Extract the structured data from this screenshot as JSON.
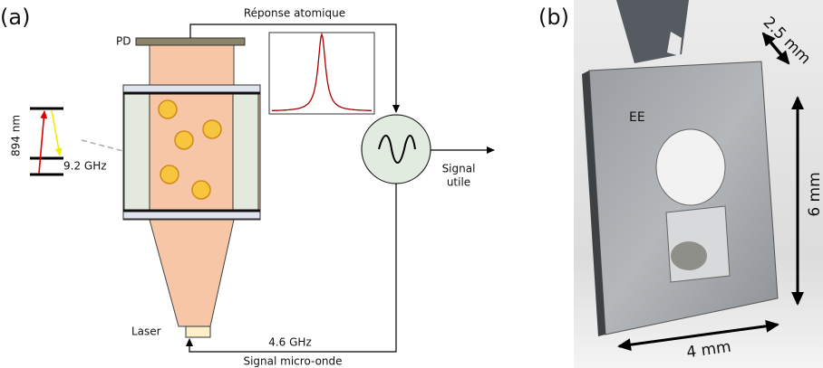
{
  "panels": [
    {
      "label": "(a)",
      "photodetector": "PD",
      "feedback_label": "Réponse atomique",
      "transition_wavelength": "894 nm",
      "hyperfine_splitting": "9.2 GHz",
      "output_label": [
        "Signal",
        "utile"
      ],
      "laser_label": "Laser",
      "modulation_frequency": "4.6 GHz",
      "modulation_label": "Signal micro-onde"
    },
    {
      "label": "(b)",
      "cell_marking": "EE",
      "dimensions": [
        "2.5 mm",
        "6 mm",
        "4 mm"
      ]
    }
  ]
}
